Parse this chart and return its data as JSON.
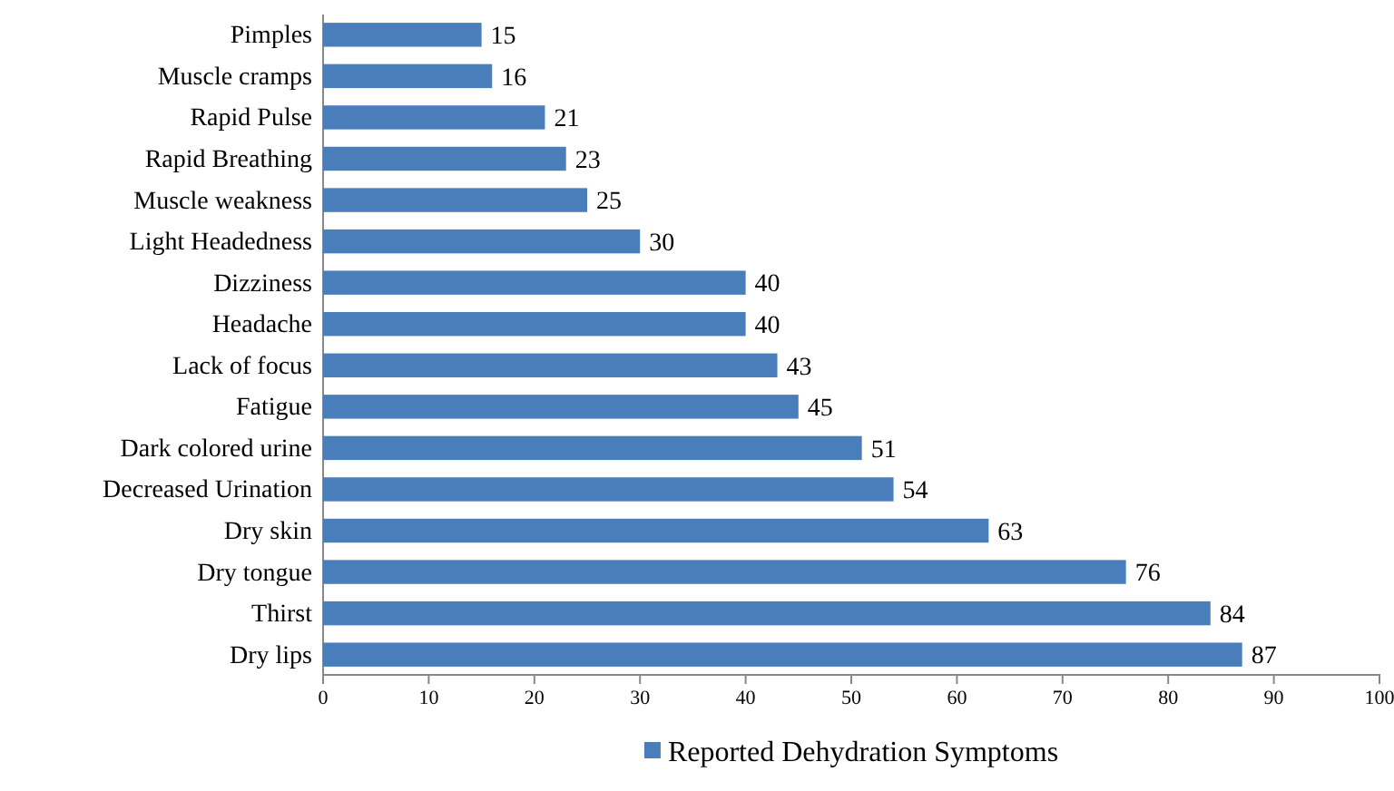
{
  "chart_data": {
    "type": "bar",
    "orientation": "horizontal",
    "categories": [
      "Pimples",
      "Muscle cramps",
      "Rapid Pulse",
      "Rapid Breathing",
      "Muscle weakness",
      "Light Headedness",
      "Dizziness",
      "Headache",
      "Lack of focus",
      "Fatigue",
      "Dark colored urine",
      "Decreased Urination",
      "Dry skin",
      "Dry tongue",
      "Thirst",
      "Dry lips"
    ],
    "series": [
      {
        "name": "Reported Dehydration Symptoms",
        "color": "#4a7ebb",
        "values": [
          15,
          16,
          21,
          23,
          25,
          30,
          40,
          40,
          43,
          45,
          51,
          54,
          63,
          76,
          84,
          87
        ]
      }
    ],
    "xlim": [
      0,
      100
    ],
    "xticks": [
      0,
      10,
      20,
      30,
      40,
      50,
      60,
      70,
      80,
      90,
      100
    ],
    "data_labels": true,
    "legend": "bottom",
    "grid": false
  }
}
